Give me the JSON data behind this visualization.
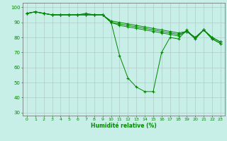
{
  "x": [
    0,
    1,
    2,
    3,
    4,
    5,
    6,
    7,
    8,
    9,
    10,
    11,
    12,
    13,
    14,
    15,
    16,
    17,
    18,
    19,
    20,
    21,
    22,
    23
  ],
  "line1": [
    96,
    97,
    96,
    95,
    95,
    95,
    95,
    95,
    95,
    95,
    90,
    68,
    53,
    47,
    44,
    44,
    70,
    80,
    79,
    85,
    79,
    85,
    79,
    76
  ],
  "line2": [
    96,
    97,
    96,
    95,
    95,
    95,
    95,
    95,
    95,
    95,
    90,
    88,
    87,
    86,
    85,
    84,
    83,
    82,
    81,
    84,
    79,
    85,
    79,
    76
  ],
  "line3": [
    96,
    97,
    96,
    95,
    95,
    95,
    95,
    96,
    95,
    95,
    90,
    89,
    88,
    87,
    86,
    85,
    84,
    83,
    82,
    84,
    80,
    85,
    80,
    77
  ],
  "line4": [
    96,
    97,
    96,
    95,
    95,
    95,
    95,
    95,
    95,
    95,
    91,
    90,
    89,
    88,
    87,
    86,
    85,
    84,
    83,
    84,
    80,
    85,
    80,
    77
  ],
  "line_color": "#008800",
  "bg_color": "#c8eee8",
  "grid_color": "#b0ccc8",
  "xlabel": "Humidité relative (%)",
  "ylim": [
    28,
    103
  ],
  "xlim": [
    -0.5,
    23.5
  ],
  "yticks": [
    30,
    40,
    50,
    60,
    70,
    80,
    90,
    100
  ],
  "xticks": [
    0,
    1,
    2,
    3,
    4,
    5,
    6,
    7,
    8,
    9,
    10,
    11,
    12,
    13,
    14,
    15,
    16,
    17,
    18,
    19,
    20,
    21,
    22,
    23
  ]
}
